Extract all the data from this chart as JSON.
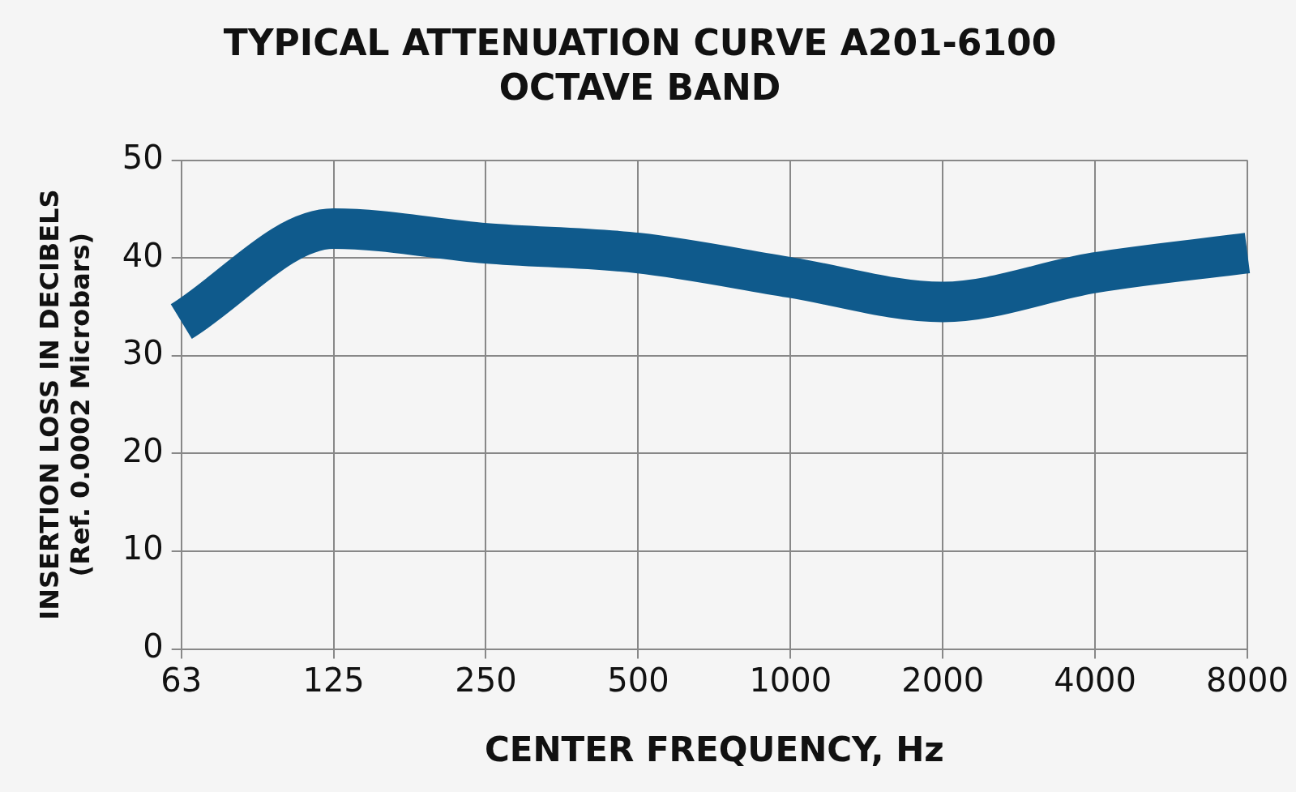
{
  "chart_data": {
    "type": "line",
    "title": "TYPICAL ATTENUATION CURVE A201-6100",
    "subtitle": "OCTAVE BAND",
    "xlabel": "CENTER FREQUENCY, Hz",
    "ylabel": "INSERTION LOSS IN DECIBELS\n(Ref. 0.0002 Microbars)",
    "categories": [
      "63",
      "125",
      "250",
      "500",
      "1000",
      "2000",
      "4000",
      "8000"
    ],
    "series": [
      {
        "color": "#0f5a8c",
        "values": [
          33.5,
          43,
          41.5,
          40.5,
          38,
          35.5,
          38.5,
          40.5
        ]
      }
    ],
    "ylim": [
      0,
      50
    ],
    "yticks": [
      0,
      10,
      20,
      30,
      40,
      50
    ],
    "grid": true,
    "legend": false,
    "marker": "none",
    "line_style": "solid"
  }
}
